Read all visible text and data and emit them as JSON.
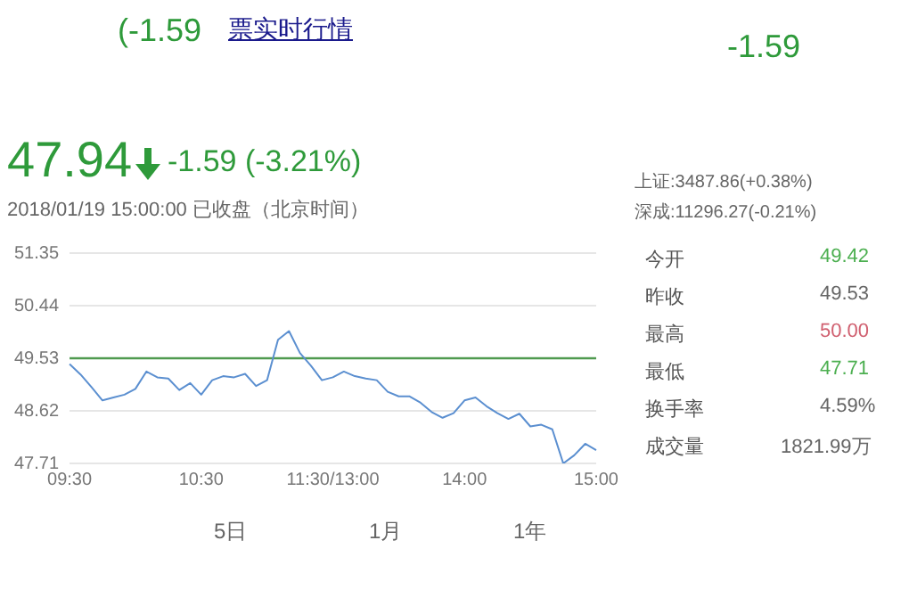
{
  "chart_data": {
    "type": "line",
    "title": "47.94",
    "subtitle": "2018/01/19 15:00:00   已收盘（北京时间）",
    "annotations": [
      "-1.59 (-3.21%)",
      "上证:3487.86(+0.38%)",
      "深成:11296.27(-0.21%)",
      "今开",
      "49.42",
      "昨收",
      "49.53",
      "最高",
      "50.00",
      "最低",
      "47.71",
      "换手率",
      "4.59%",
      "成交量",
      "1821.99万",
      "(-1.59",
      "票实时行情",
      "-1.59",
      "5日",
      "1月",
      "1年"
    ],
    "categories": [
      "09:30",
      null,
      null,
      null,
      null,
      null,
      null,
      null,
      null,
      null,
      null,
      null,
      "10:30",
      null,
      null,
      null,
      null,
      null,
      null,
      null,
      null,
      null,
      null,
      null,
      "11:30/13:00",
      null,
      null,
      null,
      null,
      null,
      null,
      null,
      null,
      null,
      null,
      null,
      "14:00",
      null,
      null,
      null,
      null,
      null,
      null,
      null,
      null,
      null,
      null,
      null,
      "15:00"
    ],
    "series": [
      {
        "color": "#5b8fd0",
        "values": [
          49.43,
          49.25,
          49.03,
          48.8,
          48.85,
          48.9,
          49.0,
          49.3,
          49.2,
          49.18,
          48.98,
          49.1,
          48.9,
          49.15,
          49.22,
          49.2,
          49.26,
          49.05,
          49.15,
          49.85,
          50.0,
          49.62,
          49.4,
          49.15,
          49.2,
          49.3,
          49.22,
          49.18,
          49.15,
          48.95,
          48.87,
          48.87,
          48.76,
          48.6,
          48.5,
          48.58,
          48.8,
          48.85,
          48.7,
          48.58,
          48.48,
          48.57,
          48.35,
          48.38,
          48.3,
          47.71,
          47.85,
          48.05,
          47.94
        ]
      }
    ],
    "ylim": [
      47.71,
      51.35
    ],
    "yticks": [
      47.71,
      48.62,
      49.53,
      50.44,
      51.35
    ],
    "ref_lines": [
      {
        "axis": "y",
        "value": 49.53,
        "color": "#4f9a4f"
      }
    ],
    "grid": "y",
    "marker": "none",
    "line_style": "solid"
  }
}
